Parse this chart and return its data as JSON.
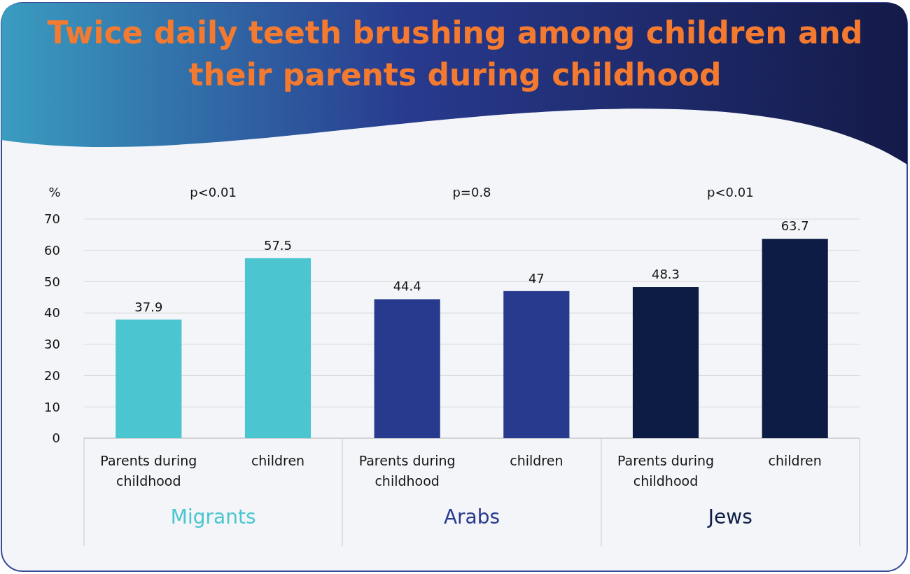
{
  "chart_data": {
    "type": "bar",
    "title": "Twice daily teeth brushing among children and their parents during childhood",
    "ylabel": "%",
    "categories": [
      "Parents during childhood",
      "children",
      "Parents during childhood",
      "children",
      "Parents during childhood",
      "children"
    ],
    "series": [
      {
        "name": "Migrants",
        "color": "#4bc5d0",
        "values": [
          37.9,
          57.5,
          null,
          null,
          null,
          null
        ]
      },
      {
        "name": "Arabs",
        "color": "#283a8e",
        "values": [
          null,
          null,
          44.4,
          47,
          null,
          null
        ]
      },
      {
        "name": "Jews",
        "color": "#0c1c44",
        "values": [
          null,
          null,
          null,
          null,
          48.3,
          63.7
        ]
      }
    ],
    "annotations": [
      "p<0.01",
      "p=0.8",
      "p<0.01"
    ],
    "ylim": [
      0,
      70
    ],
    "yticks": [
      0,
      10,
      20,
      30,
      40,
      50,
      60,
      70
    ],
    "grid": "y",
    "data_labels": true
  }
}
